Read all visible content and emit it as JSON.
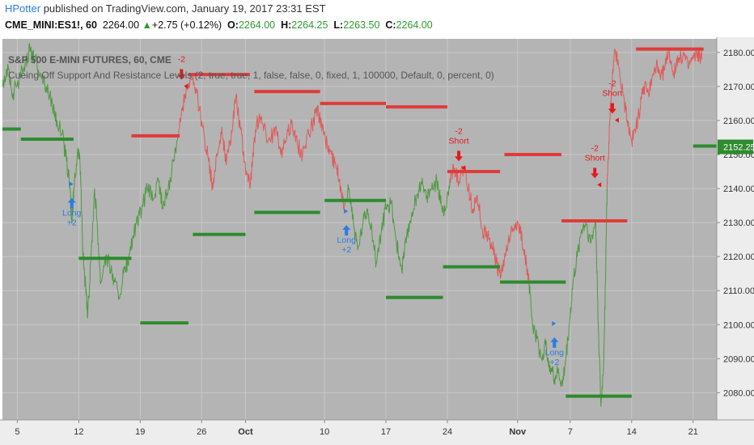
{
  "header": {
    "author": "HPotter",
    "published_text": " published on TradingView.com, January 19, 2017 23:31 EST"
  },
  "symbol_line": {
    "symbol": "CME_MINI:ES1!, 60",
    "last": "2264.00",
    "change_arrow": "▲",
    "change": "+2.75 (+0.12%)",
    "o_label": "O:",
    "o_value": "2264.00",
    "h_label": "H:",
    "h_value": "2264.25",
    "l_label": "L:",
    "l_value": "2263.50",
    "c_label": "C:",
    "c_value": "2264.00"
  },
  "colors": {
    "plot_bg": "#b4b4b4",
    "axis_bg": "#ededed",
    "grid": "#c8c8c8",
    "up_series": "#4e9a40",
    "down_series": "#e05a5a",
    "support": "#2e8b2e",
    "resistance": "#e03b3b",
    "long_signal": "#2a7de1",
    "short_signal": "#e31a1a",
    "price_badge": "#2e8b2e"
  },
  "chart_data": {
    "type": "line",
    "title": "S&P 500 E-MINI FUTURES, 60, CME",
    "subtitle": "Cueing Off Support And Resistance Levels (2, true, true, 1, false, false, 0, fixed, 1, 100000, Default, 0, percent, 0)",
    "ylim": [
      2072,
      2184
    ],
    "y_ticks": [
      2080,
      2090,
      2100,
      2110,
      2120,
      2130,
      2140,
      2150,
      2160,
      2170,
      2180
    ],
    "x_ticks": [
      {
        "label": "5",
        "x": 5
      },
      {
        "label": "12",
        "x": 12
      },
      {
        "label": "19",
        "x": 19
      },
      {
        "label": "26",
        "x": 26
      },
      {
        "label": "Oct",
        "x": 31
      },
      {
        "label": "10",
        "x": 40
      },
      {
        "label": "17",
        "x": 47
      },
      {
        "label": "24",
        "x": 54
      },
      {
        "label": "Nov",
        "x": 62
      },
      {
        "label": "7",
        "x": 68
      },
      {
        "label": "14",
        "x": 75
      },
      {
        "label": "21",
        "x": 82
      }
    ],
    "xlim": [
      3.3,
      84.7
    ],
    "last_price": "2152.25",
    "series": [
      {
        "color": "up",
        "points": [
          [
            3.3,
            2170
          ],
          [
            4.0,
            2175
          ],
          [
            4.5,
            2168
          ],
          [
            5.2,
            2172
          ],
          [
            6.0,
            2178
          ],
          [
            6.5,
            2181
          ],
          [
            7.0,
            2178
          ],
          [
            7.6,
            2174
          ],
          [
            8.3,
            2170
          ],
          [
            9.0,
            2165
          ],
          [
            9.5,
            2160
          ],
          [
            10.1,
            2156
          ],
          [
            10.6,
            2148
          ],
          [
            11.0,
            2140
          ],
          [
            11.2,
            2130
          ],
          [
            11.5,
            2142
          ],
          [
            11.9,
            2152
          ],
          [
            12.2,
            2145
          ],
          [
            12.5,
            2120
          ],
          [
            12.8,
            2110
          ],
          [
            13.0,
            2102
          ],
          [
            13.4,
            2120
          ],
          [
            13.8,
            2140
          ],
          [
            14.1,
            2130
          ],
          [
            14.5,
            2112
          ],
          [
            15.0,
            2120
          ],
          [
            15.5,
            2118
          ],
          [
            16.0,
            2113
          ],
          [
            16.6,
            2108
          ],
          [
            17.1,
            2115
          ],
          [
            17.6,
            2118
          ],
          [
            18.2,
            2126
          ],
          [
            18.7,
            2130
          ],
          [
            19.3,
            2135
          ],
          [
            19.8,
            2140
          ],
          [
            20.5,
            2137
          ],
          [
            21.1,
            2142
          ],
          [
            21.6,
            2134
          ],
          [
            22.2,
            2140
          ],
          [
            22.8,
            2148
          ],
          [
            23.3,
            2156
          ]
        ]
      },
      {
        "color": "down",
        "points": [
          [
            23.3,
            2156
          ],
          [
            23.8,
            2163
          ],
          [
            24.3,
            2170
          ],
          [
            24.9,
            2172
          ],
          [
            25.4,
            2168
          ],
          [
            26.1,
            2158
          ],
          [
            26.8,
            2148
          ],
          [
            27.3,
            2140
          ],
          [
            27.8,
            2150
          ],
          [
            28.3,
            2158
          ],
          [
            28.8,
            2147
          ],
          [
            29.4,
            2157
          ],
          [
            29.9,
            2167
          ],
          [
            30.4,
            2158
          ],
          [
            30.9,
            2148
          ],
          [
            31.5,
            2140
          ],
          [
            32.0,
            2155
          ],
          [
            32.6,
            2162
          ],
          [
            33.1,
            2158
          ],
          [
            33.8,
            2154
          ],
          [
            34.4,
            2158
          ],
          [
            35.0,
            2150
          ],
          [
            35.7,
            2155
          ],
          [
            36.3,
            2160
          ],
          [
            36.9,
            2153
          ],
          [
            37.5,
            2150
          ],
          [
            38.2,
            2156
          ],
          [
            38.8,
            2160
          ],
          [
            39.2,
            2164
          ],
          [
            39.7,
            2157
          ],
          [
            40.3,
            2153
          ],
          [
            40.8,
            2150
          ],
          [
            41.4,
            2146
          ],
          [
            41.9,
            2140
          ],
          [
            42.3,
            2135
          ]
        ]
      },
      {
        "color": "up",
        "points": [
          [
            42.3,
            2135
          ],
          [
            42.8,
            2140
          ],
          [
            43.3,
            2130
          ],
          [
            43.8,
            2122
          ],
          [
            44.4,
            2130
          ],
          [
            44.9,
            2134
          ],
          [
            45.4,
            2128
          ],
          [
            45.9,
            2118
          ],
          [
            46.5,
            2128
          ],
          [
            47.0,
            2134
          ],
          [
            47.6,
            2136
          ],
          [
            48.2,
            2124
          ],
          [
            48.8,
            2116
          ],
          [
            49.3,
            2124
          ],
          [
            49.9,
            2132
          ],
          [
            50.5,
            2138
          ],
          [
            51.0,
            2142
          ],
          [
            51.6,
            2137
          ],
          [
            52.2,
            2140
          ],
          [
            52.8,
            2142
          ],
          [
            53.3,
            2135
          ],
          [
            53.8,
            2134
          ],
          [
            54.3,
            2143
          ]
        ]
      },
      {
        "color": "down",
        "points": [
          [
            54.3,
            2143
          ],
          [
            54.8,
            2146
          ],
          [
            55.3,
            2142
          ],
          [
            55.9,
            2146
          ],
          [
            56.4,
            2140
          ],
          [
            56.9,
            2134
          ],
          [
            57.4,
            2138
          ],
          [
            58.0,
            2128
          ],
          [
            58.5,
            2126
          ],
          [
            59.0,
            2124
          ],
          [
            59.6,
            2118
          ],
          [
            60.1,
            2114
          ],
          [
            60.6,
            2120
          ],
          [
            61.2,
            2126
          ],
          [
            61.8,
            2130
          ],
          [
            62.3,
            2127
          ],
          [
            62.8,
            2122
          ],
          [
            63.3,
            2113
          ]
        ]
      },
      {
        "color": "up",
        "points": [
          [
            63.3,
            2113
          ],
          [
            63.7,
            2100
          ],
          [
            64.2,
            2096
          ],
          [
            64.7,
            2090
          ],
          [
            65.2,
            2094
          ],
          [
            65.7,
            2088
          ],
          [
            66.2,
            2084
          ],
          [
            66.6,
            2086
          ],
          [
            67.1,
            2082
          ],
          [
            67.5,
            2090
          ],
          [
            67.9,
            2100
          ],
          [
            68.3,
            2112
          ],
          [
            68.8,
            2120
          ],
          [
            69.3,
            2128
          ],
          [
            69.8,
            2130
          ],
          [
            70.3,
            2124
          ],
          [
            70.9,
            2130
          ],
          [
            71.2,
            2100
          ],
          [
            71.5,
            2076
          ],
          [
            71.8,
            2088
          ],
          [
            72.0,
            2112
          ],
          [
            72.2,
            2140
          ]
        ]
      },
      {
        "color": "down",
        "points": [
          [
            72.2,
            2140
          ],
          [
            72.5,
            2160
          ],
          [
            72.8,
            2172
          ],
          [
            73.1,
            2181
          ],
          [
            73.5,
            2176
          ],
          [
            74.0,
            2168
          ],
          [
            74.5,
            2160
          ],
          [
            75.0,
            2154
          ],
          [
            75.5,
            2158
          ],
          [
            76.0,
            2164
          ],
          [
            76.4,
            2170
          ],
          [
            76.9,
            2168
          ],
          [
            77.3,
            2172
          ],
          [
            77.8,
            2176
          ],
          [
            78.3,
            2172
          ],
          [
            78.8,
            2176
          ],
          [
            79.3,
            2180
          ],
          [
            79.8,
            2174
          ],
          [
            80.3,
            2177
          ],
          [
            80.9,
            2180
          ],
          [
            81.4,
            2176
          ],
          [
            81.9,
            2178
          ],
          [
            82.5,
            2180
          ],
          [
            83.0,
            2178
          ]
        ]
      }
    ],
    "support_levels": [
      {
        "x0": 3.3,
        "x1": 5.4,
        "y": 2157.5
      },
      {
        "x0": 5.4,
        "x1": 11.4,
        "y": 2154.5
      },
      {
        "x0": 12.0,
        "x1": 18.0,
        "y": 2119.5
      },
      {
        "x0": 19.0,
        "x1": 24.5,
        "y": 2100.5
      },
      {
        "x0": 25.0,
        "x1": 31.0,
        "y": 2126.5
      },
      {
        "x0": 32.0,
        "x1": 39.5,
        "y": 2133.0
      },
      {
        "x0": 40.0,
        "x1": 47.0,
        "y": 2136.5
      },
      {
        "x0": 47.0,
        "x1": 53.5,
        "y": 2108.0
      },
      {
        "x0": 53.5,
        "x1": 60.0,
        "y": 2117.0
      },
      {
        "x0": 60.0,
        "x1": 67.5,
        "y": 2112.5
      },
      {
        "x0": 67.5,
        "x1": 75.0,
        "y": 2079.0
      },
      {
        "x0": 82.0,
        "x1": 84.7,
        "y": 2152.5
      }
    ],
    "resistance_levels": [
      {
        "x0": 18.0,
        "x1": 23.5,
        "y": 2155.5
      },
      {
        "x0": 24.5,
        "x1": 31.5,
        "y": 2173.5
      },
      {
        "x0": 32.0,
        "x1": 39.5,
        "y": 2168.5
      },
      {
        "x0": 39.5,
        "x1": 47.0,
        "y": 2165.0
      },
      {
        "x0": 47.0,
        "x1": 54.0,
        "y": 2164.0
      },
      {
        "x0": 54.0,
        "x1": 60.0,
        "y": 2145.0
      },
      {
        "x0": 60.5,
        "x1": 67.0,
        "y": 2150.0
      },
      {
        "x0": 67.0,
        "x1": 74.5,
        "y": 2130.5
      },
      {
        "x0": 75.5,
        "x1": 83.2,
        "y": 2181.0
      }
    ],
    "signals": [
      {
        "type": "long",
        "x": 11.2,
        "y": 2133,
        "label": "Long",
        "qty": "+2"
      },
      {
        "type": "short",
        "x": 23.7,
        "y": 2172,
        "label": "",
        "qty": "-2"
      },
      {
        "type": "long",
        "x": 42.5,
        "y": 2125,
        "label": "Long",
        "qty": "+2"
      },
      {
        "type": "short",
        "x": 55.3,
        "y": 2148,
        "label": "Short",
        "qty": "-2"
      },
      {
        "type": "long",
        "x": 66.2,
        "y": 2092,
        "label": "Long",
        "qty": "+2"
      },
      {
        "type": "short",
        "x": 70.8,
        "y": 2143,
        "label": "Short",
        "qty": "-2"
      },
      {
        "type": "short",
        "x": 72.8,
        "y": 2162,
        "label": "Short",
        "qty": "-2"
      }
    ]
  }
}
